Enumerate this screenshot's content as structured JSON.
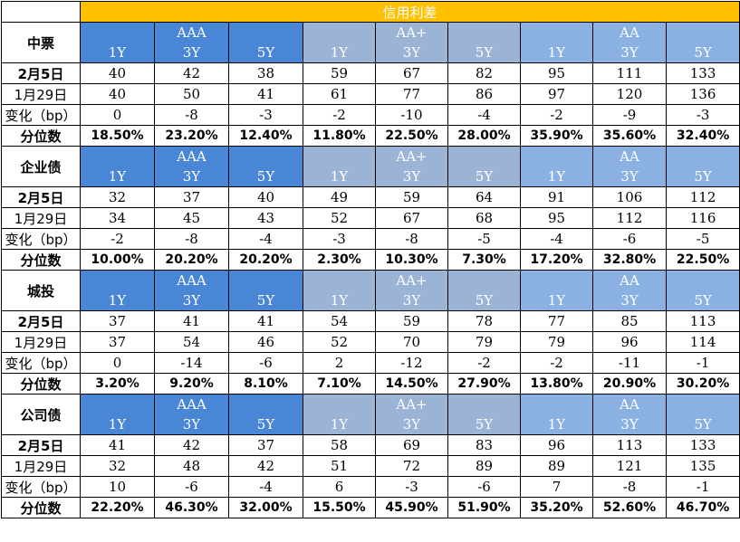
{
  "title": "信用利差",
  "grade_groups": [
    {
      "grade": "AAA",
      "tenors": [
        "1Y",
        "3Y",
        "5Y"
      ]
    },
    {
      "grade": "AA+",
      "tenors": [
        "1Y",
        "3Y",
        "5Y"
      ]
    },
    {
      "grade": "AA",
      "tenors": [
        "1Y",
        "3Y",
        "5Y"
      ]
    }
  ],
  "row_labels": {
    "date1": "2月5日",
    "date2": "1月29日",
    "change": "变化（bp）",
    "percentile": "分位数"
  },
  "sections": [
    {
      "name": "中票",
      "rows": {
        "date1": [
          "40",
          "42",
          "38",
          "59",
          "67",
          "82",
          "95",
          "111",
          "133"
        ],
        "date2": [
          "40",
          "50",
          "41",
          "61",
          "77",
          "86",
          "97",
          "120",
          "136"
        ],
        "change": [
          "0",
          "-8",
          "-3",
          "-2",
          "-10",
          "-4",
          "-2",
          "-9",
          "-3"
        ],
        "percentile": [
          "18.50%",
          "23.20%",
          "12.40%",
          "11.80%",
          "22.50%",
          "28.00%",
          "35.90%",
          "35.60%",
          "32.40%"
        ]
      }
    },
    {
      "name": "企业债",
      "rows": {
        "date1": [
          "32",
          "37",
          "40",
          "49",
          "59",
          "64",
          "91",
          "106",
          "112"
        ],
        "date2": [
          "34",
          "45",
          "43",
          "52",
          "67",
          "68",
          "95",
          "112",
          "116"
        ],
        "change": [
          "-2",
          "-8",
          "-4",
          "-3",
          "-8",
          "-5",
          "-4",
          "-6",
          "-5"
        ],
        "percentile": [
          "10.00%",
          "20.20%",
          "20.20%",
          "2.30%",
          "10.30%",
          "7.30%",
          "17.20%",
          "32.80%",
          "22.50%"
        ]
      }
    },
    {
      "name": "城投",
      "rows": {
        "date1": [
          "37",
          "41",
          "41",
          "54",
          "59",
          "78",
          "77",
          "85",
          "113"
        ],
        "date2": [
          "37",
          "54",
          "46",
          "52",
          "70",
          "79",
          "79",
          "96",
          "114"
        ],
        "change": [
          "0",
          "-14",
          "-6",
          "2",
          "-12",
          "-2",
          "-2",
          "-11",
          "-1"
        ],
        "percentile": [
          "3.20%",
          "9.20%",
          "8.10%",
          "7.10%",
          "14.50%",
          "27.90%",
          "13.80%",
          "20.90%",
          "30.20%"
        ]
      }
    },
    {
      "name": "公司债",
      "rows": {
        "date1": [
          "41",
          "42",
          "37",
          "58",
          "69",
          "83",
          "96",
          "113",
          "133"
        ],
        "date2": [
          "32",
          "48",
          "42",
          "51",
          "72",
          "89",
          "89",
          "121",
          "135"
        ],
        "change": [
          "10",
          "-6",
          "-4",
          "6",
          "-3",
          "-6",
          "7",
          "-8",
          "-1"
        ],
        "percentile": [
          "22.20%",
          "46.30%",
          "32.00%",
          "15.50%",
          "45.90%",
          "51.90%",
          "35.20%",
          "52.60%",
          "46.70%"
        ]
      }
    }
  ],
  "colors": {
    "title_bg": "#FFC000",
    "aaa_bg": "#4A86D6",
    "aa_plus_bg": "#9BB4D6",
    "aa_bg": "#8BB1E3"
  }
}
